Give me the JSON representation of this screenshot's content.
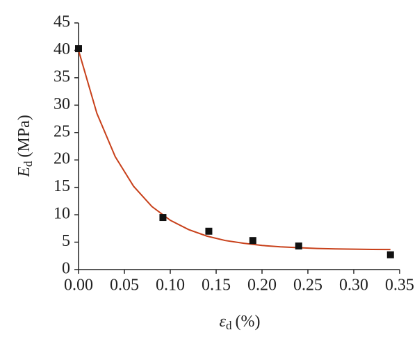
{
  "chart_data": {
    "type": "scatter",
    "xlabel": {
      "symbol": "ε",
      "subscript": "d",
      "unit": "(%)"
    },
    "ylabel": {
      "symbol": "E",
      "subscript": "d",
      "unit": "(MPa)"
    },
    "xlim": [
      0,
      0.35
    ],
    "ylim": [
      0,
      45
    ],
    "xticks": [
      {
        "value": 0,
        "label": "0.00"
      },
      {
        "value": 0.05,
        "label": "0.05"
      },
      {
        "value": 0.1,
        "label": "0.10"
      },
      {
        "value": 0.15,
        "label": "0.15"
      },
      {
        "value": 0.2,
        "label": "0.20"
      },
      {
        "value": 0.25,
        "label": "0.25"
      },
      {
        "value": 0.3,
        "label": "0.30"
      },
      {
        "value": 0.35,
        "label": "0.35"
      }
    ],
    "yticks": [
      0,
      5,
      10,
      15,
      20,
      25,
      30,
      35,
      40,
      45
    ],
    "series": [
      {
        "kind": "points",
        "color": "#111111",
        "x": [
          0,
          0.092,
          0.142,
          0.19,
          0.24,
          0.34
        ],
        "values": [
          40.3,
          9.5,
          7.0,
          5.3,
          4.3,
          2.7
        ]
      },
      {
        "kind": "line",
        "color": "#c8401a",
        "x": [
          0,
          0.02,
          0.04,
          0.06,
          0.08,
          0.1,
          0.12,
          0.14,
          0.16,
          0.18,
          0.2,
          0.22,
          0.24,
          0.26,
          0.28,
          0.3,
          0.32,
          0.34
        ],
        "values": [
          40.0,
          28.5,
          20.6,
          15.2,
          11.5,
          9.0,
          7.3,
          6.1,
          5.3,
          4.8,
          4.4,
          4.15,
          4.0,
          3.85,
          3.77,
          3.72,
          3.68,
          3.66
        ]
      }
    ]
  }
}
